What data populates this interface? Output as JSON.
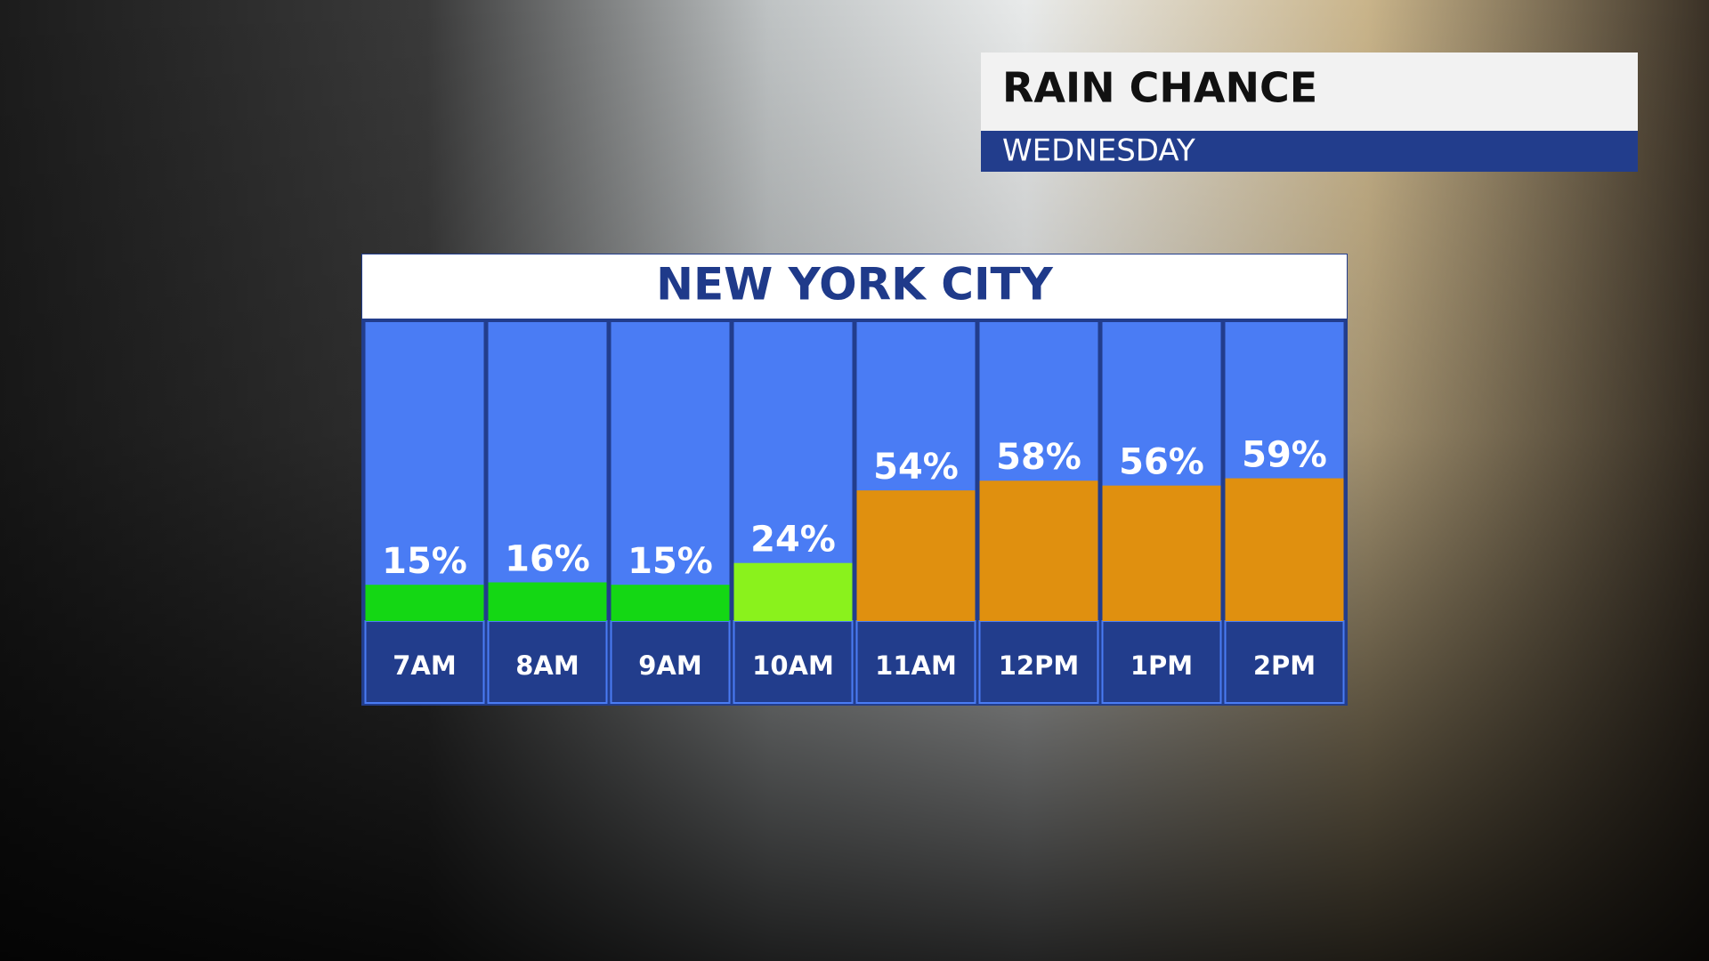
{
  "header": {
    "title": "RAIN CHANCE",
    "subtitle": "WEDNESDAY"
  },
  "chart_data": {
    "type": "bar",
    "title": "NEW YORK CITY",
    "categories": [
      "7AM",
      "8AM",
      "9AM",
      "10AM",
      "11AM",
      "12PM",
      "1PM",
      "2PM"
    ],
    "values": [
      15,
      16,
      15,
      24,
      54,
      58,
      56,
      59
    ],
    "value_labels": [
      "15%",
      "16%",
      "15%",
      "24%",
      "54%",
      "58%",
      "56%",
      "59%"
    ],
    "colors": [
      "#14d714",
      "#14d714",
      "#14d714",
      "#8af21c",
      "#e0900f",
      "#e0900f",
      "#e0900f",
      "#e0900f"
    ]
  }
}
